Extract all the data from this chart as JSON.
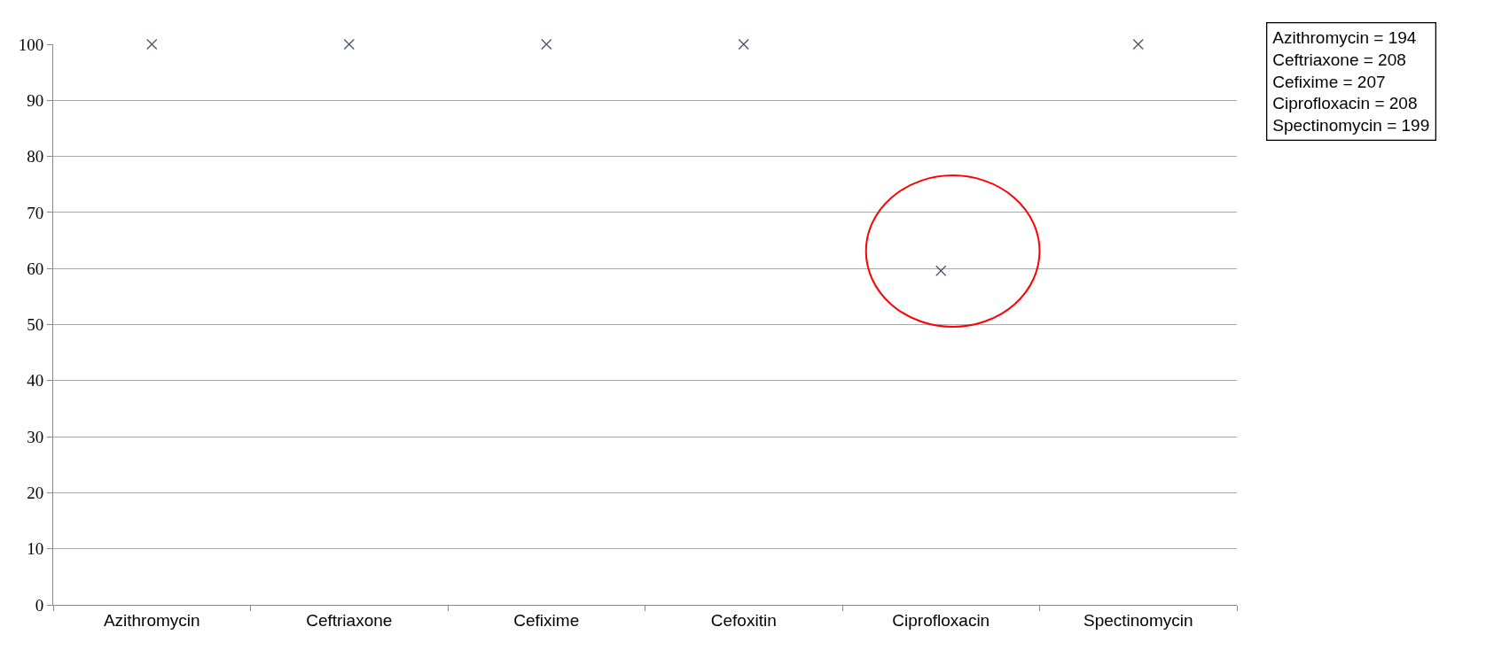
{
  "chart_data": {
    "type": "scatter",
    "categories": [
      "Azithromycin",
      "Ceftriaxone",
      "Cefixime",
      "Cefoxitin",
      "Ciprofloxacin",
      "Spectinomycin"
    ],
    "series": [
      {
        "color": "#44546a",
        "values": [
          100,
          100,
          100,
          100,
          59.6,
          100
        ]
      }
    ],
    "marker": "cross",
    "ylim": [
      0,
      100
    ],
    "yticks": [
      0,
      10,
      20,
      30,
      40,
      50,
      60,
      70,
      80,
      90,
      100
    ],
    "grid": "y",
    "annotations": [
      "Azithromycin = 194",
      "Ceftriaxone = 208",
      "Cefixime = 207",
      "Ciprofloxacin = 208",
      "Spectinomycin = 199"
    ]
  }
}
